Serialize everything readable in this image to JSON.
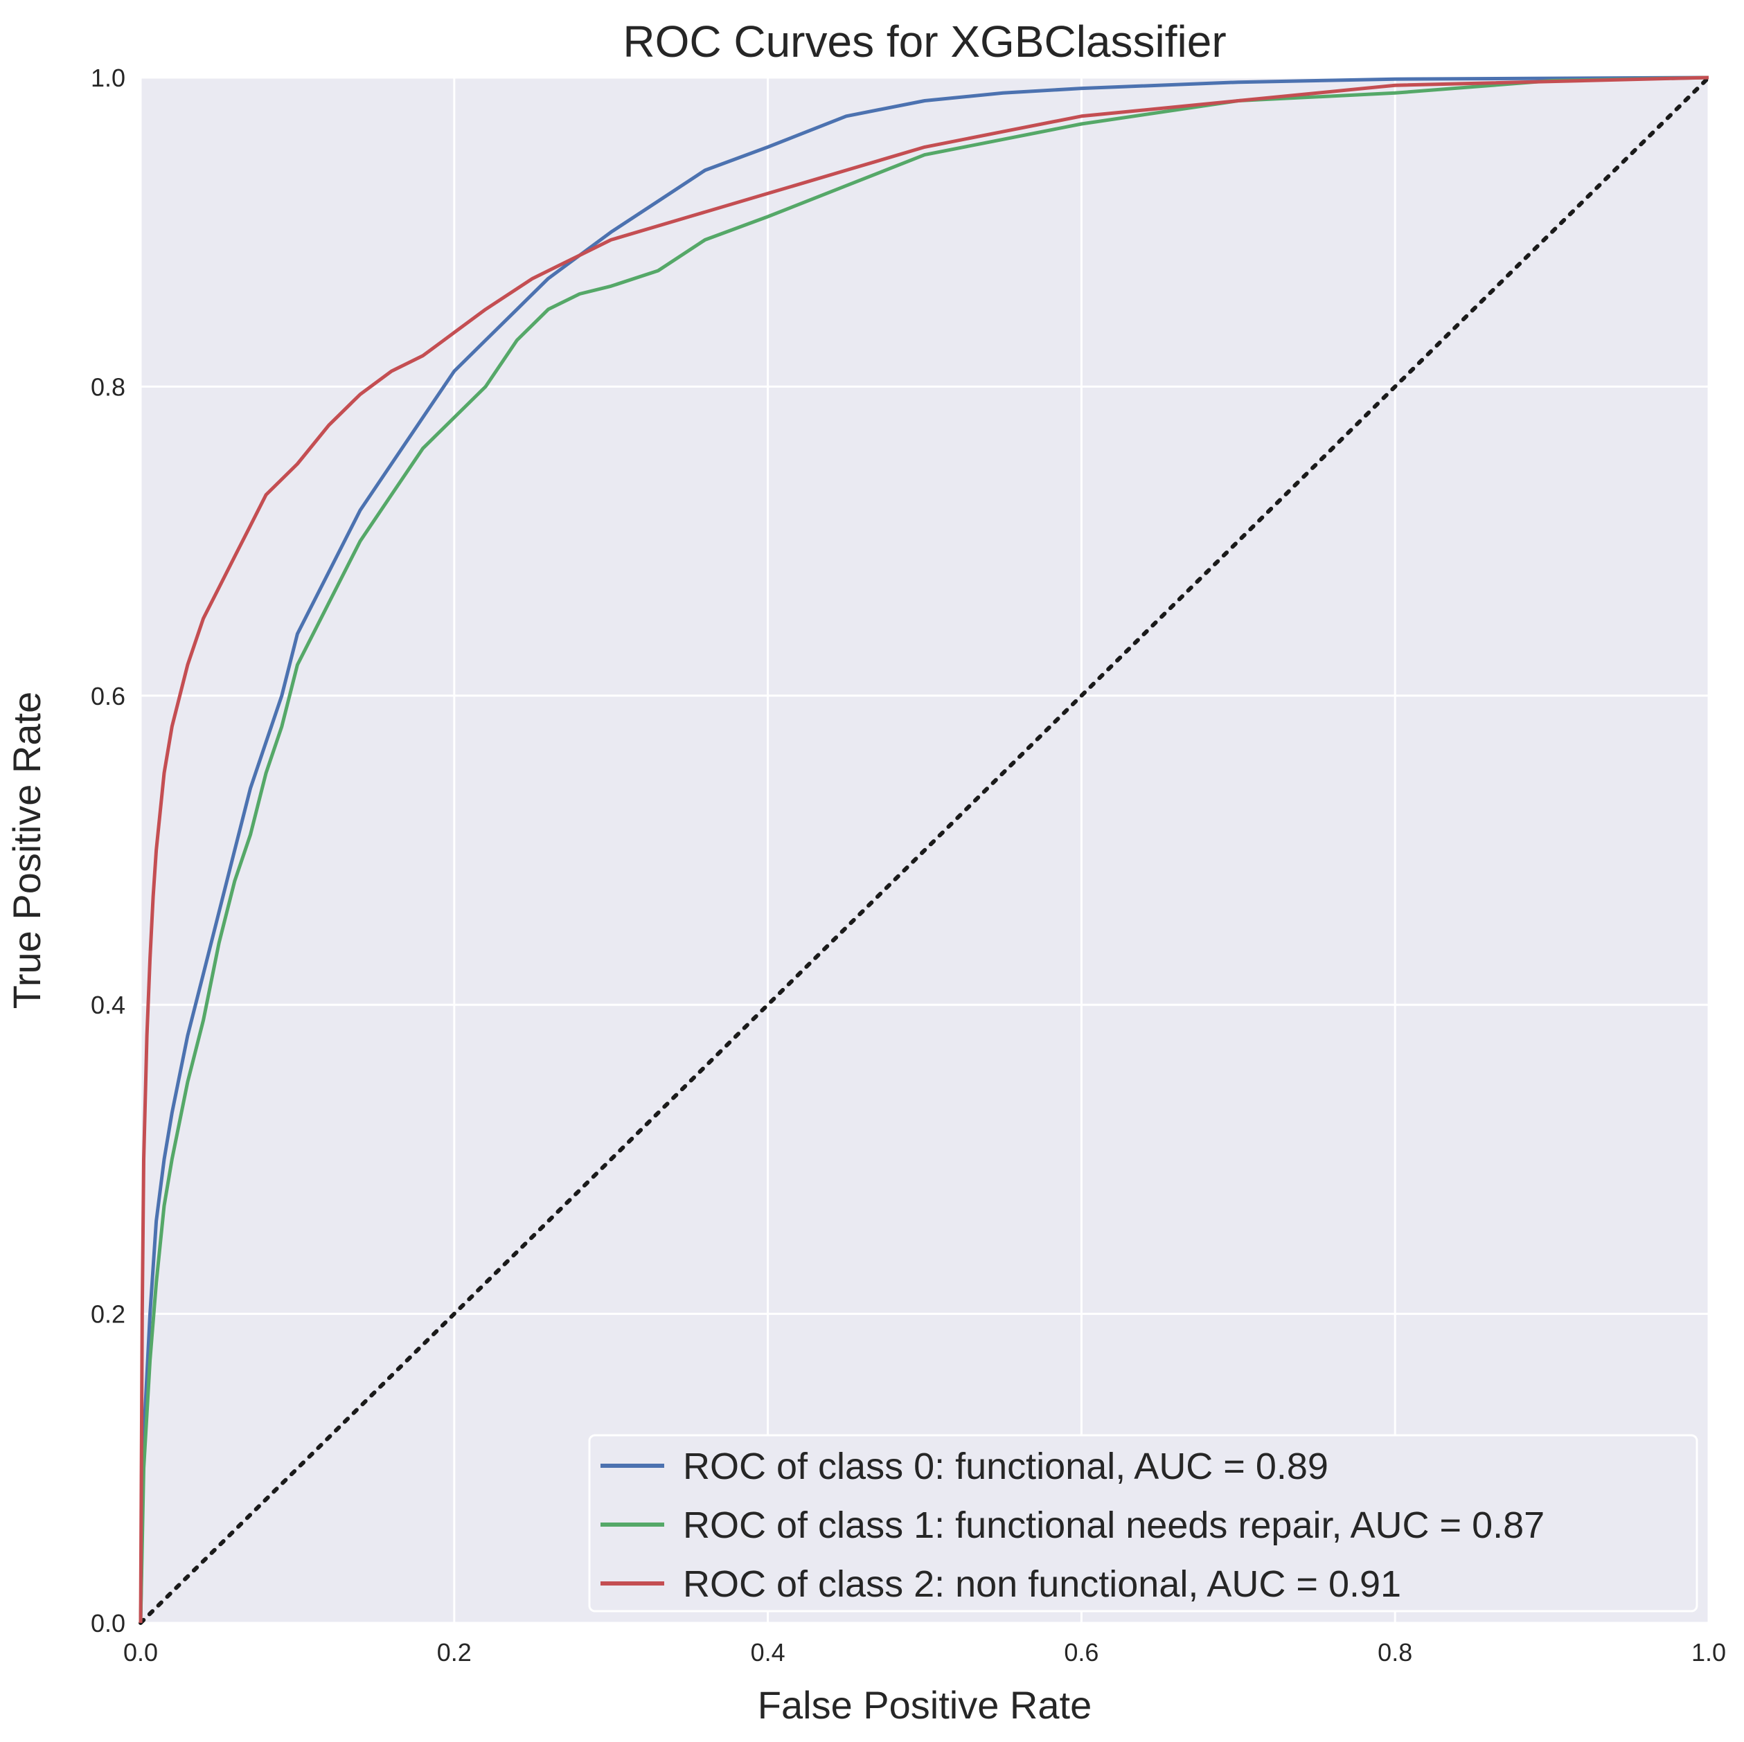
{
  "chart_data": {
    "type": "line",
    "title": "ROC Curves for XGBClassifier",
    "xlabel": "False Positive Rate",
    "ylabel": "True Positive Rate",
    "xlim": [
      0,
      1
    ],
    "ylim": [
      0,
      1
    ],
    "xticks": [
      "0.0",
      "0.2",
      "0.4",
      "0.6",
      "0.8",
      "1.0"
    ],
    "yticks": [
      "0.0",
      "0.2",
      "0.4",
      "0.6",
      "0.8",
      "1.0"
    ],
    "grid": true,
    "legend_position": "lower-right",
    "background_color": "#eaeaf2",
    "grid_color": "#ffffff",
    "series": [
      {
        "name": "ROC of class 0: functional, AUC = 0.89",
        "color": "#4c72b0",
        "x": [
          0.0,
          0.002,
          0.006,
          0.01,
          0.015,
          0.02,
          0.03,
          0.04,
          0.05,
          0.06,
          0.07,
          0.08,
          0.09,
          0.1,
          0.12,
          0.14,
          0.16,
          0.18,
          0.2,
          0.22,
          0.24,
          0.26,
          0.28,
          0.3,
          0.33,
          0.36,
          0.4,
          0.45,
          0.5,
          0.55,
          0.6,
          0.7,
          0.8,
          1.0
        ],
        "y": [
          0.0,
          0.12,
          0.2,
          0.26,
          0.3,
          0.33,
          0.38,
          0.42,
          0.46,
          0.5,
          0.54,
          0.57,
          0.6,
          0.64,
          0.68,
          0.72,
          0.75,
          0.78,
          0.81,
          0.83,
          0.85,
          0.87,
          0.885,
          0.9,
          0.92,
          0.94,
          0.955,
          0.975,
          0.985,
          0.99,
          0.993,
          0.997,
          0.999,
          1.0
        ]
      },
      {
        "name": "ROC of class 1: functional needs repair, AUC = 0.87",
        "color": "#55a868",
        "x": [
          0.0,
          0.002,
          0.006,
          0.01,
          0.015,
          0.02,
          0.03,
          0.04,
          0.05,
          0.06,
          0.07,
          0.08,
          0.09,
          0.1,
          0.12,
          0.14,
          0.16,
          0.18,
          0.2,
          0.22,
          0.24,
          0.26,
          0.28,
          0.3,
          0.33,
          0.36,
          0.4,
          0.45,
          0.5,
          0.55,
          0.6,
          0.7,
          0.8,
          0.9,
          1.0
        ],
        "y": [
          0.0,
          0.1,
          0.17,
          0.22,
          0.27,
          0.3,
          0.35,
          0.39,
          0.44,
          0.48,
          0.51,
          0.55,
          0.58,
          0.62,
          0.66,
          0.7,
          0.73,
          0.76,
          0.78,
          0.8,
          0.83,
          0.85,
          0.86,
          0.865,
          0.875,
          0.895,
          0.91,
          0.93,
          0.95,
          0.96,
          0.97,
          0.985,
          0.99,
          0.998,
          1.0
        ]
      },
      {
        "name": "ROC of class 2: non functional, AUC = 0.91",
        "color": "#c44e52",
        "x": [
          0.0,
          0.001,
          0.002,
          0.004,
          0.006,
          0.008,
          0.01,
          0.015,
          0.02,
          0.025,
          0.03,
          0.04,
          0.05,
          0.06,
          0.07,
          0.08,
          0.1,
          0.12,
          0.14,
          0.16,
          0.18,
          0.2,
          0.22,
          0.25,
          0.28,
          0.3,
          0.35,
          0.4,
          0.45,
          0.5,
          0.55,
          0.6,
          0.7,
          0.8,
          1.0
        ],
        "y": [
          0.0,
          0.2,
          0.3,
          0.38,
          0.43,
          0.47,
          0.5,
          0.55,
          0.58,
          0.6,
          0.62,
          0.65,
          0.67,
          0.69,
          0.71,
          0.73,
          0.75,
          0.775,
          0.795,
          0.81,
          0.82,
          0.835,
          0.85,
          0.87,
          0.885,
          0.895,
          0.91,
          0.925,
          0.94,
          0.955,
          0.965,
          0.975,
          0.985,
          0.995,
          1.0
        ]
      }
    ],
    "reference_line": {
      "style": "dotted",
      "color": "#1a1a1a",
      "x": [
        0,
        1
      ],
      "y": [
        0,
        1
      ]
    }
  }
}
